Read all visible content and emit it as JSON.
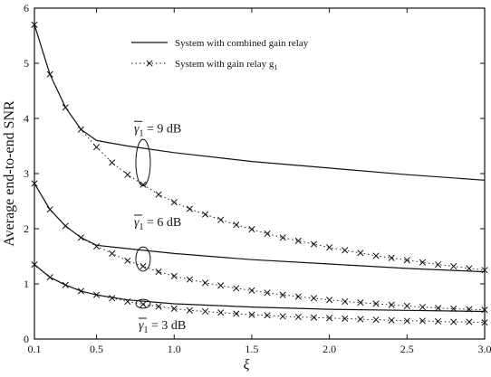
{
  "chart_data": {
    "type": "line",
    "title": "",
    "xlabel": "ξ",
    "ylabel": "Average end-to-end SNR",
    "xlim": [
      0.1,
      3.0
    ],
    "ylim": [
      0,
      6
    ],
    "xticks": [
      0.1,
      0.5,
      1.0,
      1.5,
      2.0,
      2.5,
      3.0
    ],
    "xtick_labels": [
      "0.1",
      "0.5",
      "1.0",
      "1.5",
      "2.0",
      "2.5",
      "3.0"
    ],
    "yticks": [
      0,
      1,
      2,
      3,
      4,
      5,
      6
    ],
    "ytick_labels": [
      "0",
      "1",
      "2",
      "3",
      "4",
      "5",
      "6"
    ],
    "grid": false,
    "legend_position": "top-right",
    "legend": [
      {
        "label": "System with combined gain relay",
        "style": "solid"
      },
      {
        "label": "System with gain relay g",
        "subscript": "1",
        "style": "dotted-x"
      }
    ],
    "annotations": [
      {
        "gamma": "γ",
        "sub": "1",
        "text": " = 9 dB",
        "x": 0.8,
        "y": 3.3
      },
      {
        "gamma": "γ",
        "sub": "1",
        "text": " = 6 dB",
        "x": 0.8,
        "y": 1.6
      },
      {
        "gamma": "γ",
        "sub": "1",
        "text": " = 3 dB",
        "x": 0.8,
        "y": 0.63
      }
    ],
    "series": [
      {
        "name": "System with combined gain relay",
        "group": "9 dB",
        "style": "solid",
        "x": [
          0.1,
          0.2,
          0.3,
          0.4,
          0.5,
          0.7,
          1.0,
          1.5,
          2.0,
          2.5,
          3.0
        ],
        "y": [
          5.7,
          4.8,
          4.2,
          3.8,
          3.6,
          3.5,
          3.38,
          3.22,
          3.1,
          2.98,
          2.88
        ]
      },
      {
        "name": "System with gain relay g1",
        "group": "9 dB",
        "style": "dotted-x",
        "x": [
          0.1,
          0.2,
          0.3,
          0.4,
          0.5,
          0.6,
          0.7,
          0.8,
          0.9,
          1.0,
          1.1,
          1.2,
          1.3,
          1.4,
          1.5,
          1.6,
          1.7,
          1.8,
          1.9,
          2.0,
          2.1,
          2.2,
          2.3,
          2.4,
          2.5,
          2.6,
          2.7,
          2.8,
          2.9,
          3.0
        ],
        "y": [
          5.7,
          4.8,
          4.2,
          3.8,
          3.48,
          3.2,
          2.98,
          2.8,
          2.62,
          2.48,
          2.36,
          2.26,
          2.16,
          2.07,
          1.99,
          1.91,
          1.84,
          1.78,
          1.72,
          1.66,
          1.61,
          1.56,
          1.51,
          1.47,
          1.43,
          1.39,
          1.35,
          1.32,
          1.28,
          1.25
        ]
      },
      {
        "name": "System with combined gain relay",
        "group": "6 dB",
        "style": "solid",
        "x": [
          0.1,
          0.2,
          0.3,
          0.4,
          0.5,
          0.7,
          1.0,
          1.5,
          2.0,
          2.5,
          3.0
        ],
        "y": [
          2.82,
          2.35,
          2.05,
          1.84,
          1.7,
          1.64,
          1.55,
          1.44,
          1.36,
          1.28,
          1.22
        ]
      },
      {
        "name": "System with gain relay g1",
        "group": "6 dB",
        "style": "dotted-x",
        "x": [
          0.1,
          0.2,
          0.3,
          0.4,
          0.5,
          0.6,
          0.7,
          0.8,
          0.9,
          1.0,
          1.1,
          1.2,
          1.3,
          1.4,
          1.5,
          1.6,
          1.7,
          1.8,
          1.9,
          2.0,
          2.1,
          2.2,
          2.3,
          2.4,
          2.5,
          2.6,
          2.7,
          2.8,
          2.9,
          3.0
        ],
        "y": [
          2.82,
          2.35,
          2.05,
          1.84,
          1.68,
          1.55,
          1.42,
          1.32,
          1.22,
          1.14,
          1.08,
          1.02,
          0.97,
          0.92,
          0.88,
          0.84,
          0.8,
          0.77,
          0.74,
          0.71,
          0.68,
          0.66,
          0.64,
          0.62,
          0.6,
          0.58,
          0.56,
          0.55,
          0.54,
          0.53
        ]
      },
      {
        "name": "System with combined gain relay",
        "group": "3 dB",
        "style": "solid",
        "x": [
          0.1,
          0.2,
          0.3,
          0.4,
          0.5,
          0.7,
          1.0,
          1.5,
          2.0,
          2.5,
          3.0
        ],
        "y": [
          1.35,
          1.12,
          0.98,
          0.87,
          0.8,
          0.71,
          0.64,
          0.58,
          0.54,
          0.52,
          0.5
        ]
      },
      {
        "name": "System with gain relay g1",
        "group": "3 dB",
        "style": "dotted-x",
        "x": [
          0.1,
          0.2,
          0.3,
          0.4,
          0.5,
          0.6,
          0.7,
          0.8,
          0.9,
          1.0,
          1.1,
          1.2,
          1.3,
          1.4,
          1.5,
          1.6,
          1.7,
          1.8,
          1.9,
          2.0,
          2.1,
          2.2,
          2.3,
          2.4,
          2.5,
          2.6,
          2.7,
          2.8,
          2.9,
          3.0
        ],
        "y": [
          1.35,
          1.12,
          0.98,
          0.87,
          0.8,
          0.74,
          0.68,
          0.63,
          0.59,
          0.55,
          0.52,
          0.5,
          0.48,
          0.46,
          0.44,
          0.43,
          0.41,
          0.4,
          0.39,
          0.38,
          0.37,
          0.36,
          0.35,
          0.34,
          0.33,
          0.33,
          0.32,
          0.31,
          0.31,
          0.3
        ]
      }
    ]
  }
}
